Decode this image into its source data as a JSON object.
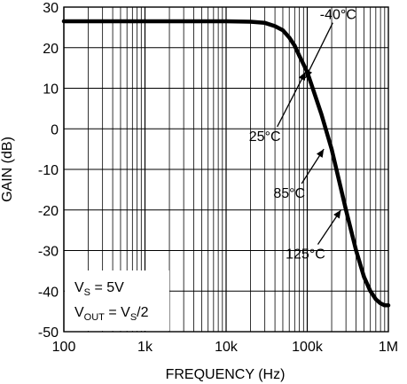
{
  "chart_data": {
    "type": "line",
    "title": "",
    "xlabel": "FREQUENCY (Hz)",
    "ylabel": "GAIN (dB)",
    "x_scale": "log",
    "xlim": [
      100,
      1000000
    ],
    "ylim": [
      -50,
      30
    ],
    "grid": true,
    "x_ticks": [
      {
        "value": 100,
        "label": "100"
      },
      {
        "value": 1000,
        "label": "1k"
      },
      {
        "value": 10000,
        "label": "10k"
      },
      {
        "value": 100000,
        "label": "100k"
      },
      {
        "value": 1000000,
        "label": "1M"
      }
    ],
    "y_ticks": [
      30,
      20,
      10,
      0,
      -10,
      -20,
      -30,
      -40,
      -50
    ],
    "y_tick_labels": [
      "30",
      "20",
      "10",
      "0",
      "-10",
      "-20",
      "-30",
      "-40",
      "-50"
    ],
    "series": [
      {
        "x": [
          100,
          1000,
          10000,
          20000,
          30000,
          40000,
          50000,
          60000,
          70000,
          80000,
          100000,
          150000,
          200000,
          300000,
          400000,
          500000,
          600000,
          700000,
          800000,
          900000,
          1000000
        ],
        "y": [
          26.5,
          26.5,
          26.5,
          26.4,
          26.1,
          25.3,
          24.3,
          22.5,
          20.5,
          18.0,
          14.0,
          3.5,
          -5.0,
          -20.0,
          -30.0,
          -36.5,
          -40.0,
          -42.0,
          -43.0,
          -43.5,
          -43.5
        ]
      }
    ],
    "annotations": [
      {
        "label": "-40°C",
        "text_at": [
          240000,
          27
        ],
        "arrow_to": [
          95000,
          12.5
        ]
      },
      {
        "label": "25°C",
        "text_at": [
          30000,
          -3
        ],
        "arrow_to": [
          95000,
          14
        ]
      },
      {
        "label": "85°C",
        "text_at": [
          60000,
          -17
        ],
        "arrow_to": [
          160000,
          -5
        ]
      },
      {
        "label": "125°C",
        "text_at": [
          95000,
          -32
        ],
        "arrow_to": [
          260000,
          -20
        ]
      }
    ],
    "conditions": {
      "line1_main": "V",
      "line1_sub": "S",
      "line1_rest": " = 5V",
      "line2_main": "V",
      "line2_sub": "OUT",
      "line2_mid": " = V",
      "line2_sub2": "S",
      "line2_rest": "/2"
    }
  }
}
